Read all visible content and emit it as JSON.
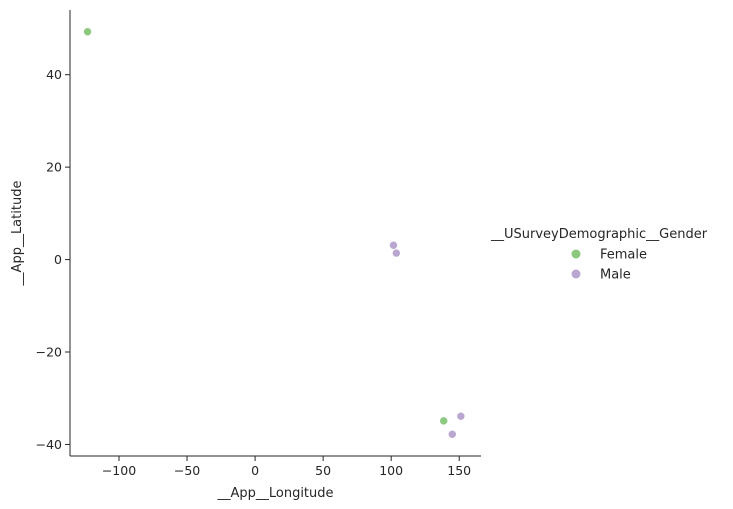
{
  "chart_data": {
    "type": "scatter",
    "title": "",
    "xlabel": "__App__Longitude",
    "ylabel": "__App__Latitude",
    "xlim": [
      -136,
      166
    ],
    "ylim": [
      -42.5,
      54
    ],
    "xticks": [
      -100,
      -50,
      0,
      50,
      100,
      150
    ],
    "yticks": [
      -40,
      -20,
      0,
      20,
      40
    ],
    "grid": false,
    "legend": {
      "title": "__USurveyDemographic__Gender",
      "placement": "right",
      "entries": [
        "Female",
        "Male"
      ]
    },
    "series": [
      {
        "name": "Female",
        "color": "#8cc97f",
        "points": [
          {
            "x": -123.1,
            "y": 49.3
          },
          {
            "x": 138.6,
            "y": -34.9
          }
        ]
      },
      {
        "name": "Male",
        "color": "#b9a7d2",
        "points": [
          {
            "x": 101.7,
            "y": 3.1
          },
          {
            "x": 103.8,
            "y": 1.4
          },
          {
            "x": 144.9,
            "y": -37.8
          },
          {
            "x": 151.2,
            "y": -33.9
          }
        ]
      }
    ]
  }
}
